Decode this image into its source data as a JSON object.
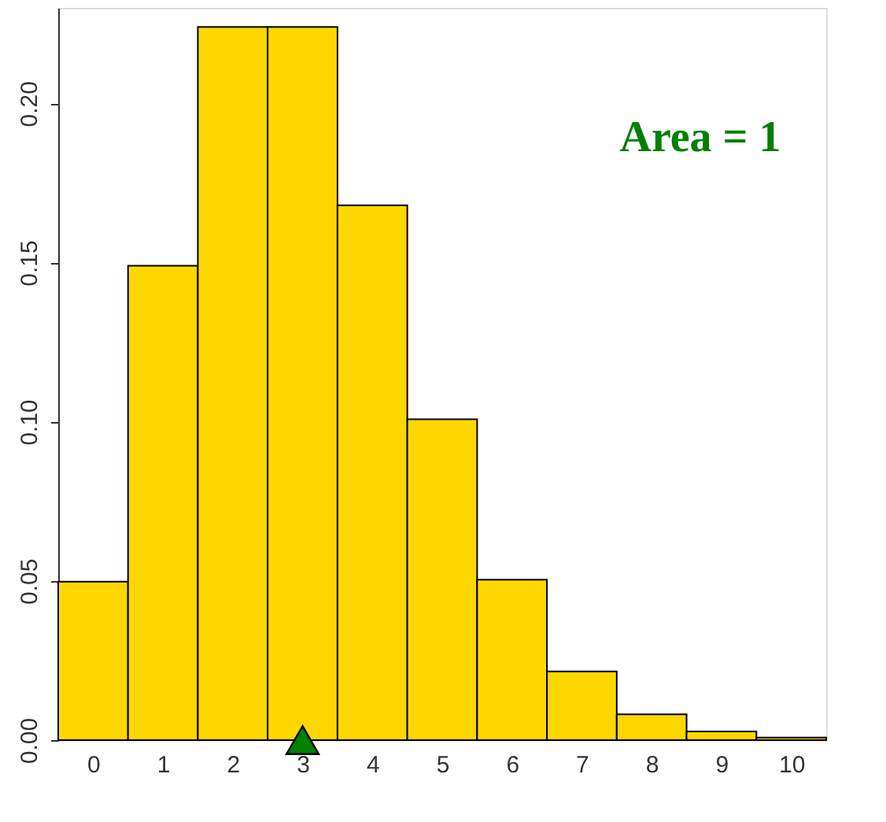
{
  "chart_data": {
    "type": "bar",
    "categories": [
      "0",
      "1",
      "2",
      "3",
      "4",
      "5",
      "6",
      "7",
      "8",
      "9",
      "10"
    ],
    "series": [
      {
        "color": "#ffd700",
        "values": [
          0.0498,
          0.149,
          0.224,
          0.224,
          0.168,
          0.1008,
          0.0504,
          0.0216,
          0.0081,
          0.0027,
          0.0008
        ]
      },
      {
        "type": "scatter",
        "color": "#008000",
        "marker": "triangle",
        "x": [
          "3"
        ],
        "values": [
          0
        ]
      }
    ],
    "ylim": [
      0,
      0.23
    ],
    "yticks": [
      {
        "value": 0,
        "label": "0.00"
      },
      {
        "value": 0.05,
        "label": "0.05"
      },
      {
        "value": 0.1,
        "label": "0.10"
      },
      {
        "value": 0.15,
        "label": "0.15"
      },
      {
        "value": 0.2,
        "label": "0.20"
      }
    ],
    "annotations": [
      "Area = 1"
    ],
    "grid": false
  }
}
